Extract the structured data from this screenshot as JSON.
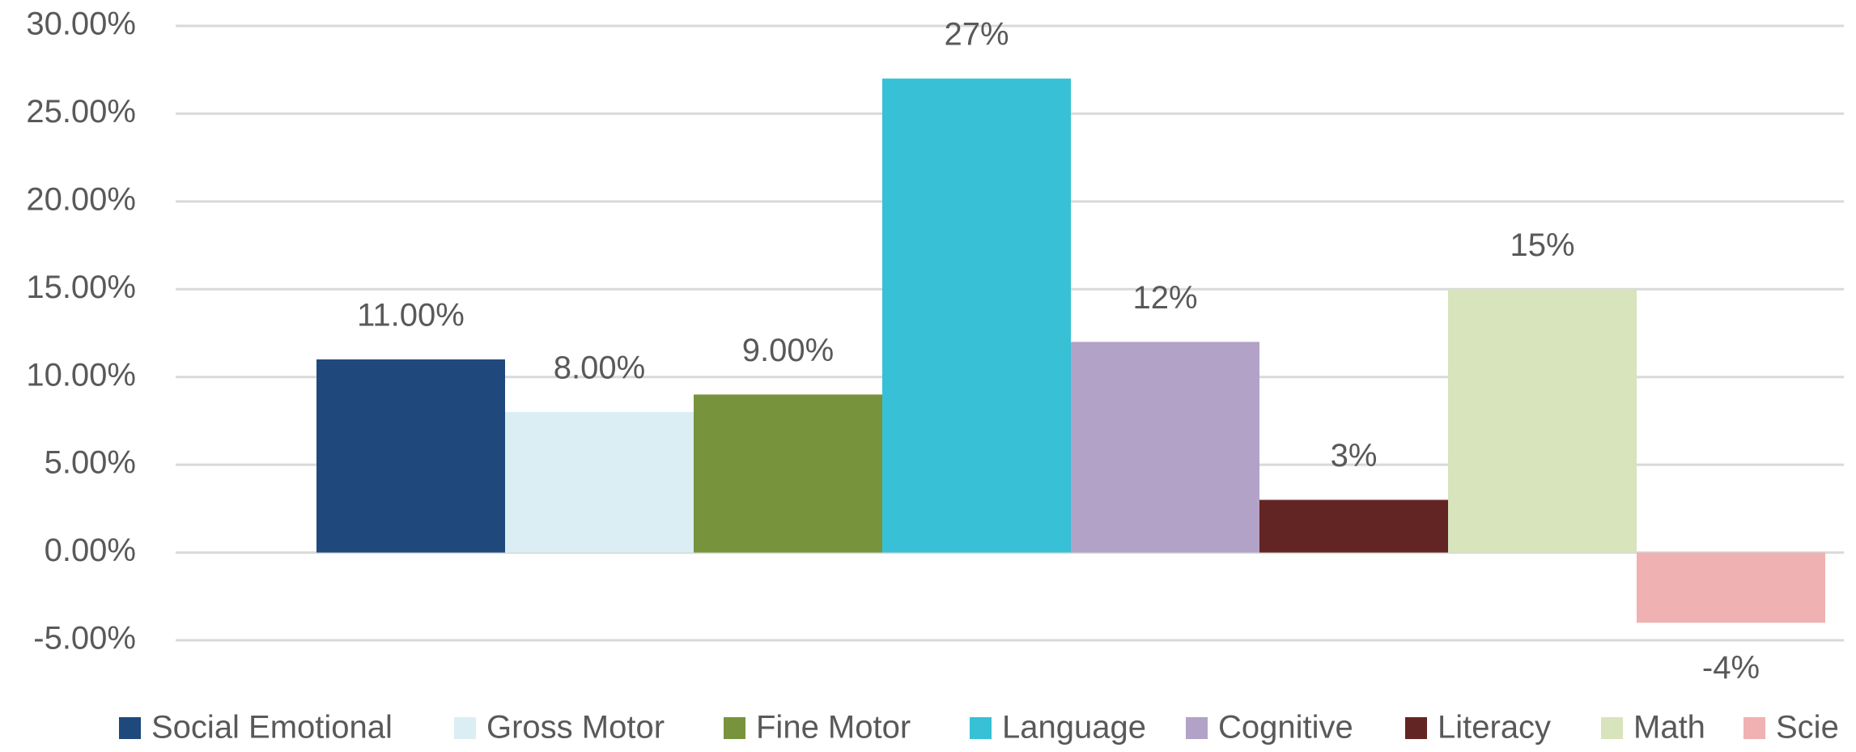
{
  "chart_data": {
    "type": "bar",
    "series": [
      {
        "name": "Social Emotional",
        "color": "#1f497d",
        "values": [
          11
        ],
        "value_labels": [
          "11.00%"
        ]
      },
      {
        "name": "Gross Motor",
        "color": "#dbeef4",
        "values": [
          8
        ],
        "value_labels": [
          "8.00%"
        ]
      },
      {
        "name": "Fine Motor",
        "color": "#77933c",
        "values": [
          9
        ],
        "value_labels": [
          "9.00%"
        ]
      },
      {
        "name": "Language",
        "color": "#37c0d6",
        "values": [
          27
        ],
        "value_labels": [
          "27%"
        ]
      },
      {
        "name": "Cognitive",
        "color": "#b2a2c7",
        "values": [
          12
        ],
        "value_labels": [
          "12%"
        ]
      },
      {
        "name": "Literacy",
        "color": "#632523",
        "values": [
          3
        ],
        "value_labels": [
          "3%"
        ]
      },
      {
        "name": "Math",
        "color": "#d7e4bc",
        "values": [
          15
        ],
        "value_labels": [
          "15%"
        ]
      },
      {
        "name": "Scie",
        "color": "#efb1b1",
        "values": [
          -4
        ],
        "value_labels": [
          "-4%"
        ]
      }
    ],
    "ylim": [
      -5,
      30
    ],
    "yticks": [
      {
        "value": -5,
        "label": "-5.00%"
      },
      {
        "value": 0,
        "label": "0.00%"
      },
      {
        "value": 5,
        "label": "5.00%"
      },
      {
        "value": 10,
        "label": "10.00%"
      },
      {
        "value": 15,
        "label": "15.00%"
      },
      {
        "value": 20,
        "label": "20.00%"
      },
      {
        "value": 25,
        "label": "25.00%"
      },
      {
        "value": 30,
        "label": "30.00%"
      }
    ],
    "grid": true,
    "legend": "bottom"
  }
}
